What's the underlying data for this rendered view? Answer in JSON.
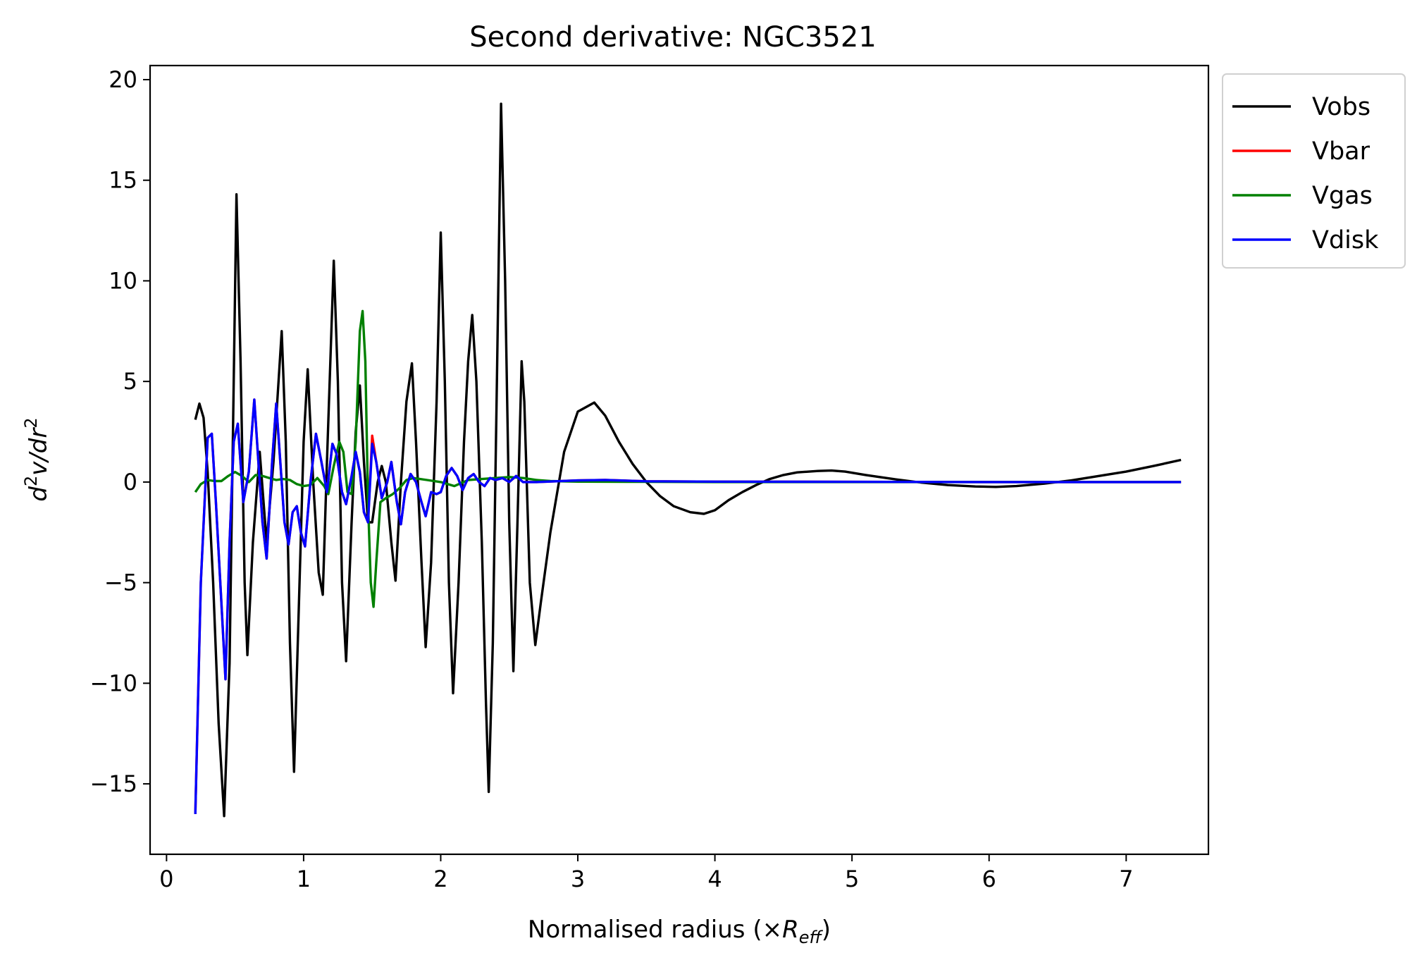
{
  "chart_data": {
    "type": "line",
    "title": "Second derivative: NGC3521",
    "xlabel": {
      "main": "Normalised radius (×",
      "sym": "R",
      "sub": "eff",
      "close": ")"
    },
    "ylabel": {
      "d": "d",
      "sup1": "2",
      "mid": "v/dr",
      "sup2": "2"
    },
    "xlim": [
      -0.12,
      7.6
    ],
    "ylim": [
      -18.5,
      20.7
    ],
    "x_ticks": [
      0,
      1,
      2,
      3,
      4,
      5,
      6,
      7
    ],
    "x_tick_labels": [
      "0",
      "1",
      "2",
      "3",
      "4",
      "5",
      "6",
      "7"
    ],
    "y_ticks": [
      -15,
      -10,
      -5,
      0,
      5,
      10,
      15,
      20
    ],
    "y_tick_labels": [
      "−15",
      "−10",
      "−5",
      "0",
      "5",
      "10",
      "15",
      "20"
    ],
    "grid": false,
    "legend_position": "outside top-right",
    "series": [
      {
        "name": "Vobs",
        "color": "#000000",
        "points": [
          [
            0.21,
            3.1
          ],
          [
            0.24,
            3.9
          ],
          [
            0.27,
            3.2
          ],
          [
            0.3,
            0.5
          ],
          [
            0.34,
            -5
          ],
          [
            0.38,
            -12
          ],
          [
            0.42,
            -16.6
          ],
          [
            0.46,
            -9
          ],
          [
            0.49,
            5
          ],
          [
            0.51,
            14.3
          ],
          [
            0.54,
            6
          ],
          [
            0.57,
            -5
          ],
          [
            0.59,
            -8.6
          ],
          [
            0.63,
            -3
          ],
          [
            0.68,
            1.5
          ],
          [
            0.73,
            -3
          ],
          [
            0.78,
            1
          ],
          [
            0.84,
            7.5
          ],
          [
            0.87,
            2
          ],
          [
            0.9,
            -8
          ],
          [
            0.93,
            -14.4
          ],
          [
            0.97,
            -5
          ],
          [
            1.0,
            2
          ],
          [
            1.03,
            5.6
          ],
          [
            1.07,
            0
          ],
          [
            1.11,
            -4.5
          ],
          [
            1.14,
            -5.6
          ],
          [
            1.17,
            1
          ],
          [
            1.2,
            7
          ],
          [
            1.22,
            11
          ],
          [
            1.25,
            5
          ],
          [
            1.28,
            -5
          ],
          [
            1.31,
            -8.9
          ],
          [
            1.35,
            -2
          ],
          [
            1.38,
            2.5
          ],
          [
            1.41,
            4.8
          ],
          [
            1.44,
            1
          ],
          [
            1.47,
            -2
          ],
          [
            1.5,
            -2
          ],
          [
            1.54,
            0
          ],
          [
            1.57,
            0.8
          ],
          [
            1.6,
            0
          ],
          [
            1.64,
            -3
          ],
          [
            1.67,
            -4.9
          ],
          [
            1.71,
            0
          ],
          [
            1.75,
            4
          ],
          [
            1.79,
            5.9
          ],
          [
            1.82,
            2
          ],
          [
            1.86,
            -4
          ],
          [
            1.89,
            -8.2
          ],
          [
            1.93,
            -4
          ],
          [
            1.97,
            4
          ],
          [
            2.0,
            12.4
          ],
          [
            2.03,
            5
          ],
          [
            2.06,
            -5
          ],
          [
            2.09,
            -10.5
          ],
          [
            2.13,
            -5
          ],
          [
            2.17,
            2
          ],
          [
            2.2,
            6
          ],
          [
            2.23,
            8.3
          ],
          [
            2.26,
            5
          ],
          [
            2.3,
            -3
          ],
          [
            2.33,
            -11
          ],
          [
            2.35,
            -15.4
          ],
          [
            2.38,
            -8
          ],
          [
            2.41,
            5
          ],
          [
            2.44,
            18.8
          ],
          [
            2.47,
            10
          ],
          [
            2.5,
            -2
          ],
          [
            2.53,
            -9.4
          ],
          [
            2.56,
            -2
          ],
          [
            2.59,
            6
          ],
          [
            2.61,
            4
          ],
          [
            2.65,
            -5
          ],
          [
            2.69,
            -8.1
          ],
          [
            2.73,
            -6
          ],
          [
            2.8,
            -2.5
          ],
          [
            2.9,
            1.5
          ],
          [
            3.0,
            3.5
          ],
          [
            3.12,
            3.95
          ],
          [
            3.2,
            3.3
          ],
          [
            3.3,
            2
          ],
          [
            3.4,
            0.9
          ],
          [
            3.5,
            0
          ],
          [
            3.6,
            -0.7
          ],
          [
            3.7,
            -1.2
          ],
          [
            3.82,
            -1.5
          ],
          [
            3.92,
            -1.58
          ],
          [
            4.0,
            -1.4
          ],
          [
            4.1,
            -0.9
          ],
          [
            4.2,
            -0.5
          ],
          [
            4.3,
            -0.15
          ],
          [
            4.4,
            0.15
          ],
          [
            4.5,
            0.35
          ],
          [
            4.6,
            0.48
          ],
          [
            4.75,
            0.55
          ],
          [
            4.85,
            0.57
          ],
          [
            4.95,
            0.52
          ],
          [
            5.1,
            0.35
          ],
          [
            5.3,
            0.15
          ],
          [
            5.5,
            -0.02
          ],
          [
            5.7,
            -0.15
          ],
          [
            5.9,
            -0.22
          ],
          [
            6.05,
            -0.24
          ],
          [
            6.2,
            -0.2
          ],
          [
            6.4,
            -0.08
          ],
          [
            6.6,
            0.08
          ],
          [
            6.8,
            0.3
          ],
          [
            7.0,
            0.52
          ],
          [
            7.2,
            0.8
          ],
          [
            7.4,
            1.1
          ]
        ]
      },
      {
        "name": "Vbar",
        "color": "#ff0000",
        "points": [
          [
            0.21,
            -16.5
          ],
          [
            0.25,
            -5
          ],
          [
            0.3,
            2.2
          ],
          [
            0.33,
            2.4
          ],
          [
            0.36,
            -1
          ],
          [
            0.4,
            -6
          ],
          [
            0.43,
            -9.8
          ],
          [
            0.46,
            -3
          ],
          [
            0.49,
            2
          ],
          [
            0.52,
            2.9
          ],
          [
            0.56,
            -1
          ],
          [
            0.6,
            0.5
          ],
          [
            0.64,
            4.1
          ],
          [
            0.67,
            1
          ],
          [
            0.7,
            -2
          ],
          [
            0.73,
            -3.8
          ],
          [
            0.77,
            1
          ],
          [
            0.8,
            3.9
          ],
          [
            0.83,
            1
          ],
          [
            0.86,
            -2
          ],
          [
            0.89,
            -3.1
          ],
          [
            0.92,
            -1.5
          ],
          [
            0.95,
            -1.2
          ],
          [
            0.98,
            -2.5
          ],
          [
            1.01,
            -3.2
          ],
          [
            1.05,
            0
          ],
          [
            1.09,
            2.4
          ],
          [
            1.13,
            1
          ],
          [
            1.17,
            -0.5
          ],
          [
            1.21,
            1.9
          ],
          [
            1.24,
            1.4
          ],
          [
            1.28,
            -0.5
          ],
          [
            1.31,
            -1.1
          ],
          [
            1.35,
            0.3
          ],
          [
            1.38,
            1.5
          ],
          [
            1.41,
            0.5
          ],
          [
            1.44,
            -1.5
          ],
          [
            1.47,
            -2
          ],
          [
            1.5,
            2.3
          ],
          [
            1.53,
            1
          ],
          [
            1.57,
            -0.8
          ],
          [
            1.61,
            0
          ],
          [
            1.64,
            1
          ],
          [
            1.68,
            -1
          ],
          [
            1.71,
            -2.1
          ],
          [
            1.74,
            -0.5
          ],
          [
            1.78,
            0.4
          ],
          [
            1.82,
            0
          ],
          [
            1.86,
            -1
          ],
          [
            1.89,
            -1.7
          ],
          [
            1.93,
            -0.5
          ],
          [
            1.97,
            -0.6
          ],
          [
            2.0,
            -0.5
          ],
          [
            2.04,
            0.3
          ],
          [
            2.08,
            0.7
          ],
          [
            2.12,
            0.3
          ],
          [
            2.16,
            -0.4
          ],
          [
            2.2,
            0.2
          ],
          [
            2.24,
            0.4
          ],
          [
            2.28,
            0
          ],
          [
            2.32,
            -0.2
          ],
          [
            2.36,
            0.2
          ],
          [
            2.4,
            0.1
          ],
          [
            2.45,
            0.2
          ],
          [
            2.5,
            0
          ],
          [
            2.55,
            0.3
          ],
          [
            2.6,
            0
          ],
          [
            2.7,
            0
          ],
          [
            3.0,
            0.08
          ],
          [
            3.2,
            0.1
          ],
          [
            3.5,
            0.04
          ],
          [
            4.0,
            0.02
          ],
          [
            5.0,
            0.01
          ],
          [
            6.0,
            0
          ],
          [
            7.4,
            0
          ]
        ]
      },
      {
        "name": "Vgas",
        "color": "#008000",
        "points": [
          [
            0.21,
            -0.5
          ],
          [
            0.25,
            -0.1
          ],
          [
            0.3,
            0.1
          ],
          [
            0.35,
            0.05
          ],
          [
            0.4,
            0.05
          ],
          [
            0.45,
            0.3
          ],
          [
            0.5,
            0.5
          ],
          [
            0.55,
            0.3
          ],
          [
            0.6,
            0
          ],
          [
            0.65,
            0.35
          ],
          [
            0.7,
            0.3
          ],
          [
            0.75,
            0.2
          ],
          [
            0.8,
            0.1
          ],
          [
            0.85,
            0.15
          ],
          [
            0.9,
            0.1
          ],
          [
            0.95,
            -0.1
          ],
          [
            1.0,
            -0.2
          ],
          [
            1.05,
            -0.15
          ],
          [
            1.1,
            0.2
          ],
          [
            1.15,
            -0.2
          ],
          [
            1.18,
            -0.6
          ],
          [
            1.22,
            0.8
          ],
          [
            1.26,
            2
          ],
          [
            1.29,
            1.5
          ],
          [
            1.32,
            -0.5
          ],
          [
            1.35,
            -0.6
          ],
          [
            1.38,
            2
          ],
          [
            1.41,
            7.5
          ],
          [
            1.43,
            8.5
          ],
          [
            1.45,
            6
          ],
          [
            1.47,
            -1
          ],
          [
            1.49,
            -5
          ],
          [
            1.51,
            -6.2
          ],
          [
            1.53,
            -4
          ],
          [
            1.56,
            -1
          ],
          [
            1.6,
            -0.8
          ],
          [
            1.65,
            -0.6
          ],
          [
            1.7,
            -0.3
          ],
          [
            1.75,
            0.1
          ],
          [
            1.8,
            0.2
          ],
          [
            1.9,
            0.1
          ],
          [
            2.0,
            0
          ],
          [
            2.1,
            -0.2
          ],
          [
            2.2,
            0.1
          ],
          [
            2.3,
            0.15
          ],
          [
            2.4,
            0.2
          ],
          [
            2.5,
            0.25
          ],
          [
            2.6,
            0.2
          ],
          [
            2.7,
            0.1
          ],
          [
            2.8,
            0.05
          ],
          [
            3.0,
            0.02
          ],
          [
            3.5,
            0.01
          ],
          [
            4.0,
            0
          ],
          [
            7.4,
            0
          ]
        ]
      },
      {
        "name": "Vdisk",
        "color": "#0000ff",
        "points": [
          [
            0.21,
            -16.5
          ],
          [
            0.25,
            -5
          ],
          [
            0.3,
            2.2
          ],
          [
            0.33,
            2.4
          ],
          [
            0.36,
            -1
          ],
          [
            0.4,
            -6
          ],
          [
            0.43,
            -9.8
          ],
          [
            0.46,
            -3
          ],
          [
            0.49,
            2
          ],
          [
            0.52,
            2.9
          ],
          [
            0.56,
            -1
          ],
          [
            0.6,
            0.5
          ],
          [
            0.64,
            4.1
          ],
          [
            0.67,
            1
          ],
          [
            0.7,
            -2
          ],
          [
            0.73,
            -3.8
          ],
          [
            0.77,
            1
          ],
          [
            0.8,
            3.9
          ],
          [
            0.83,
            1
          ],
          [
            0.86,
            -2
          ],
          [
            0.89,
            -3.1
          ],
          [
            0.92,
            -1.5
          ],
          [
            0.95,
            -1.2
          ],
          [
            0.98,
            -2.5
          ],
          [
            1.01,
            -3.2
          ],
          [
            1.05,
            0
          ],
          [
            1.09,
            2.4
          ],
          [
            1.13,
            1
          ],
          [
            1.17,
            -0.5
          ],
          [
            1.21,
            1.9
          ],
          [
            1.24,
            1.4
          ],
          [
            1.28,
            -0.5
          ],
          [
            1.31,
            -1.1
          ],
          [
            1.35,
            0.3
          ],
          [
            1.38,
            1.5
          ],
          [
            1.41,
            0.5
          ],
          [
            1.44,
            -1.5
          ],
          [
            1.47,
            -2
          ],
          [
            1.5,
            1.9
          ],
          [
            1.53,
            1
          ],
          [
            1.57,
            -0.8
          ],
          [
            1.61,
            0
          ],
          [
            1.64,
            1
          ],
          [
            1.68,
            -1
          ],
          [
            1.71,
            -2.1
          ],
          [
            1.74,
            -0.5
          ],
          [
            1.78,
            0.4
          ],
          [
            1.82,
            0
          ],
          [
            1.86,
            -1
          ],
          [
            1.89,
            -1.7
          ],
          [
            1.93,
            -0.5
          ],
          [
            1.97,
            -0.6
          ],
          [
            2.0,
            -0.5
          ],
          [
            2.04,
            0.3
          ],
          [
            2.08,
            0.7
          ],
          [
            2.12,
            0.3
          ],
          [
            2.16,
            -0.4
          ],
          [
            2.2,
            0.2
          ],
          [
            2.24,
            0.4
          ],
          [
            2.28,
            0
          ],
          [
            2.32,
            -0.2
          ],
          [
            2.36,
            0.2
          ],
          [
            2.4,
            0.1
          ],
          [
            2.45,
            0.2
          ],
          [
            2.5,
            0
          ],
          [
            2.55,
            0.3
          ],
          [
            2.6,
            0
          ],
          [
            2.7,
            0
          ],
          [
            3.0,
            0.08
          ],
          [
            3.2,
            0.1
          ],
          [
            3.5,
            0.04
          ],
          [
            4.0,
            0.02
          ],
          [
            5.0,
            0.01
          ],
          [
            6.0,
            0
          ],
          [
            7.4,
            0
          ]
        ]
      }
    ]
  }
}
